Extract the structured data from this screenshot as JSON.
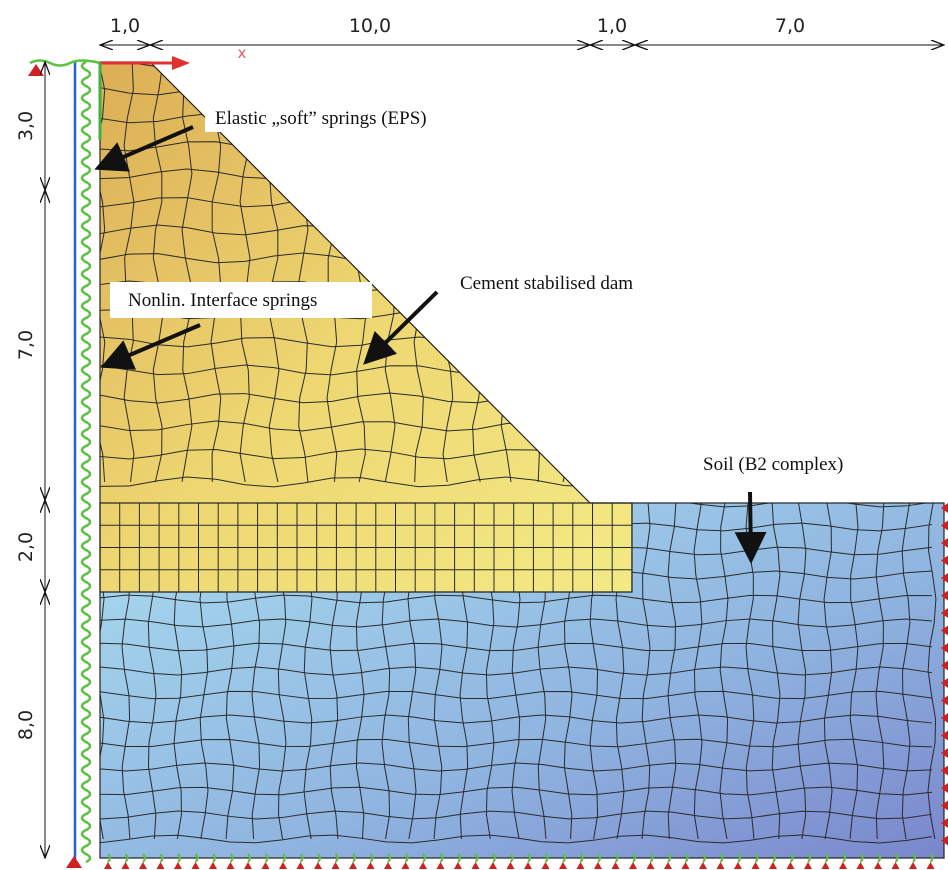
{
  "dimensions": {
    "top": [
      "1,0",
      "10,0",
      "1,0",
      "7,0"
    ],
    "left": [
      "3,0",
      "7,0",
      "2,0",
      "8,0"
    ]
  },
  "axis_label": "x",
  "annotations": [
    "Elastic „soft” springs (EPS)",
    "Nonlin. Interface springs",
    "Cement stabilised dam",
    "Soil (B2 complex)"
  ]
}
